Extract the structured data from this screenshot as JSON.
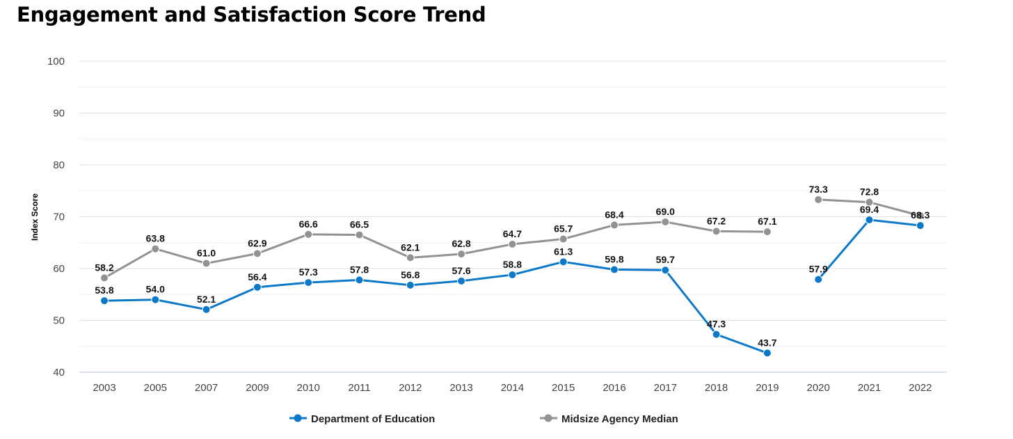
{
  "chart_data": {
    "type": "line",
    "title": "Engagement and Satisfaction Score Trend",
    "xlabel": "",
    "ylabel": "Index Score",
    "ylim": [
      40,
      100
    ],
    "yticks": [
      40,
      50,
      60,
      70,
      80,
      90,
      100
    ],
    "grid": true,
    "legend_position": "bottom",
    "categories": [
      "2003",
      "2005",
      "2007",
      "2009",
      "2010",
      "2011",
      "2012",
      "2013",
      "2014",
      "2015",
      "2016",
      "2017",
      "2018",
      "2019",
      "2020",
      "2021",
      "2022"
    ],
    "series": [
      {
        "name": "Midsize Agency Median",
        "color": "#929292",
        "values": [
          58.2,
          63.8,
          61.0,
          62.9,
          66.6,
          66.5,
          62.1,
          62.8,
          64.7,
          65.7,
          68.4,
          69.0,
          67.2,
          67.1,
          73.3,
          72.8,
          70.2
        ],
        "labels": [
          "58.2",
          "63.8",
          "61.0",
          "62.9",
          "66.6",
          "66.5",
          "62.1",
          "62.8",
          "64.7",
          "65.7",
          "68.4",
          "69.0",
          "67.2",
          "67.1",
          "73.3",
          "72.8",
          null
        ],
        "segment_breaks_after": [
          "2019"
        ]
      },
      {
        "name": "Department of Education",
        "color": "#0c78c8",
        "values": [
          53.8,
          54.0,
          52.1,
          56.4,
          57.3,
          57.8,
          56.8,
          57.6,
          58.8,
          61.3,
          59.8,
          59.7,
          47.3,
          43.7,
          57.9,
          69.4,
          68.3
        ],
        "labels": [
          "53.8",
          "54.0",
          "52.1",
          "56.4",
          "57.3",
          "57.8",
          "56.8",
          "57.6",
          "58.8",
          "61.3",
          "59.8",
          "59.7",
          "47.3",
          "43.7",
          "57.9",
          "69.4",
          "68.3"
        ],
        "segment_breaks_after": [
          "2019"
        ]
      }
    ]
  }
}
